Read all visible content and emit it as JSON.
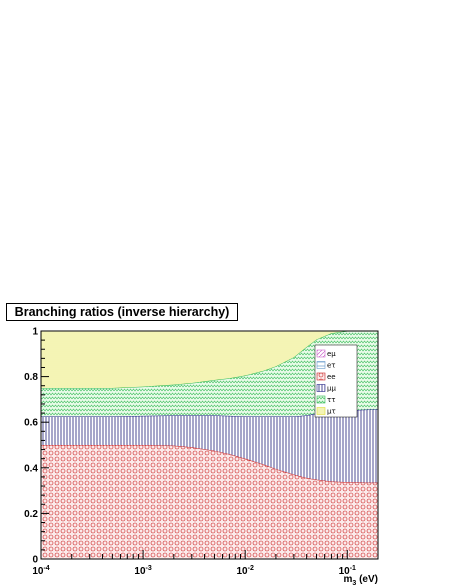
{
  "chart_data": {
    "type": "area",
    "stacked": true,
    "title": "Branching ratios (inverse hierarchy)",
    "xlabel": "m",
    "xlabel_subscript": "3",
    "xlabel_unit": " (eV)",
    "x_scale": "log",
    "xlim": [
      0.0001,
      0.2
    ],
    "ylim": [
      0,
      1
    ],
    "x_ticks": [
      {
        "value": 0.0001,
        "base": "10",
        "exp": "-4"
      },
      {
        "value": 0.001,
        "base": "10",
        "exp": "-3"
      },
      {
        "value": 0.01,
        "base": "10",
        "exp": "-2"
      },
      {
        "value": 0.1,
        "base": "10",
        "exp": "-1"
      }
    ],
    "y_ticks": [
      0,
      0.2,
      0.4,
      0.6,
      0.8,
      1
    ],
    "y_tick_labels": [
      "0",
      "0.2",
      "0.4",
      "0.6",
      "0.8",
      "1"
    ],
    "legend_position": "top-right",
    "x": [
      0.0001,
      0.0002,
      0.0005,
      0.001,
      0.002,
      0.003,
      0.005,
      0.007,
      0.01,
      0.015,
      0.02,
      0.03,
      0.04,
      0.05,
      0.07,
      0.1,
      0.15,
      0.2
    ],
    "series": [
      {
        "name": "eμ",
        "color": "#cc66cc",
        "values": [
          0,
          0,
          0,
          0,
          0,
          0,
          0,
          0,
          0,
          0,
          0,
          0,
          0,
          0,
          0,
          0,
          0,
          0
        ]
      },
      {
        "name": "eτ",
        "color": "#6699cc",
        "values": [
          0,
          0,
          0,
          0,
          0,
          0,
          0,
          0,
          0,
          0,
          0,
          0,
          0,
          0,
          0,
          0,
          0,
          0
        ]
      },
      {
        "name": "ee",
        "color": "#cc2222",
        "values": [
          0.5,
          0.5,
          0.5,
          0.5,
          0.497,
          0.49,
          0.475,
          0.46,
          0.44,
          0.415,
          0.395,
          0.37,
          0.355,
          0.348,
          0.34,
          0.337,
          0.335,
          0.335
        ]
      },
      {
        "name": "μμ",
        "color": "#222288",
        "values": [
          0.125,
          0.125,
          0.125,
          0.128,
          0.133,
          0.14,
          0.155,
          0.168,
          0.185,
          0.21,
          0.23,
          0.255,
          0.275,
          0.29,
          0.305,
          0.315,
          0.32,
          0.322
        ]
      },
      {
        "name": "ττ",
        "color": "#33bb55",
        "values": [
          0.125,
          0.125,
          0.125,
          0.128,
          0.135,
          0.142,
          0.155,
          0.165,
          0.18,
          0.2,
          0.22,
          0.26,
          0.3,
          0.325,
          0.345,
          0.348,
          0.345,
          0.343
        ]
      },
      {
        "name": "μτ",
        "color": "#dddd33",
        "values": [
          0.25,
          0.25,
          0.25,
          0.244,
          0.235,
          0.228,
          0.215,
          0.207,
          0.195,
          0.175,
          0.155,
          0.115,
          0.07,
          0.037,
          0.01,
          0,
          0,
          0
        ]
      }
    ]
  }
}
